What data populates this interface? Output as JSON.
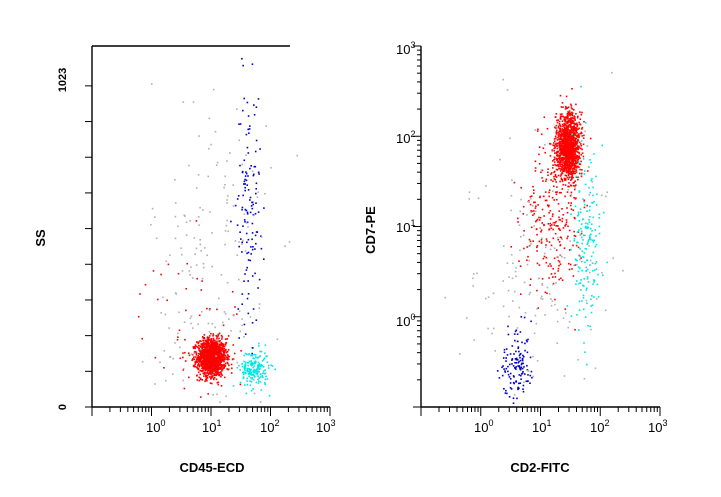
{
  "colors": {
    "lymphocytes": "#ff0000",
    "monocytes": "#00e5e5",
    "granulocytes": "#0000cc",
    "debris": "#b0b0b0",
    "axis": "#000000"
  },
  "chart_data": [
    {
      "type": "scatter",
      "xlabel": "CD45-ECD",
      "ylabel": "SS",
      "x_scale": "log",
      "xlim": [
        0.1,
        1000
      ],
      "x_ticks": [
        {
          "base": "10",
          "exp": "0"
        },
        {
          "base": "10",
          "exp": "1"
        },
        {
          "base": "10",
          "exp": "2"
        },
        {
          "base": "10",
          "exp": "3"
        }
      ],
      "y_scale": "linear",
      "ylim": [
        0,
        1150
      ],
      "y_tick_labels": [
        "0",
        "1023"
      ],
      "y_tick_values": [
        0,
        1023
      ],
      "clusters": [
        {
          "color_key": "lymphocytes",
          "count": 1400,
          "x_log_mean": 1.0,
          "x_log_sd": 0.12,
          "y_mean": 160,
          "y_sd": 30
        },
        {
          "color_key": "monocytes",
          "count": 200,
          "x_log_mean": 1.72,
          "x_log_sd": 0.12,
          "y_mean": 125,
          "y_sd": 30
        },
        {
          "color_key": "granulocytes",
          "count": 130,
          "x_log_mean": 1.62,
          "x_log_sd": 0.1,
          "y_mean": 640,
          "y_sd": 190
        },
        {
          "color_key": "lymphocytes",
          "count": 60,
          "x_log_mean": 0.7,
          "x_log_sd": 0.45,
          "y_mean": 250,
          "y_sd": 120
        },
        {
          "color_key": "debris",
          "count": 180,
          "x_log_mean": 1.0,
          "x_log_sd": 0.5,
          "y_mean": 420,
          "y_sd": 330
        }
      ]
    },
    {
      "type": "scatter",
      "xlabel": "CD2-FITC",
      "ylabel": "CD7-PE",
      "x_scale": "log",
      "xlim": [
        0.1,
        1000
      ],
      "x_ticks": [
        {
          "base": "10",
          "exp": "0"
        },
        {
          "base": "10",
          "exp": "1"
        },
        {
          "base": "10",
          "exp": "2"
        },
        {
          "base": "10",
          "exp": "3"
        }
      ],
      "y_scale": "log",
      "ylim": [
        0.1,
        1000
      ],
      "y_ticks": [
        {
          "base": "10",
          "exp": "0",
          "value": 1
        },
        {
          "base": "10",
          "exp": "1",
          "value": 10
        },
        {
          "base": "10",
          "exp": "2",
          "value": 100
        },
        {
          "base": "10",
          "exp": "3",
          "value": 1000
        }
      ],
      "clusters": [
        {
          "color_key": "lymphocytes",
          "count": 1300,
          "x_log_mean": 1.45,
          "x_log_sd": 0.1,
          "y_log_mean": 1.9,
          "y_log_sd": 0.18
        },
        {
          "color_key": "lymphocytes",
          "count": 260,
          "x_log_mean": 1.15,
          "x_log_sd": 0.25,
          "y_log_mean": 1.1,
          "y_log_sd": 0.45
        },
        {
          "color_key": "monocytes",
          "count": 180,
          "x_log_mean": 1.75,
          "x_log_sd": 0.12,
          "y_log_mean": 0.9,
          "y_log_sd": 0.55
        },
        {
          "color_key": "granulocytes",
          "count": 140,
          "x_log_mean": 0.6,
          "x_log_sd": 0.13,
          "y_log_mean": -0.55,
          "y_log_sd": 0.22
        },
        {
          "color_key": "debris",
          "count": 150,
          "x_log_mean": 0.9,
          "x_log_sd": 0.6,
          "y_log_mean": 0.5,
          "y_log_sd": 0.8
        }
      ]
    }
  ]
}
